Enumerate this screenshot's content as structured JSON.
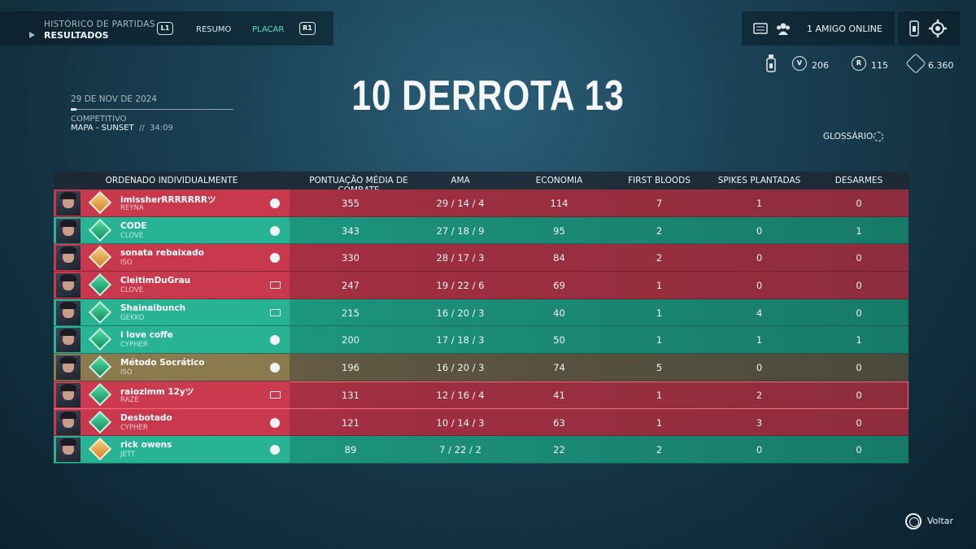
{
  "nav": {
    "history_title": "HISTÓRICO DE PARTIDAS",
    "history_sub": "RESULTADOS",
    "btn_left": "L1",
    "btn_right": "R1",
    "tabs": [
      {
        "label": "RESUMO",
        "active": false
      },
      {
        "label": "PLACAR",
        "active": true
      }
    ],
    "friends_online": "1 AMIGO ONLINE"
  },
  "currencies": [
    {
      "icon": "vp-icon",
      "value": "206"
    },
    {
      "icon": "radianite-icon",
      "value": "115"
    },
    {
      "icon": "kingdom-credits-icon",
      "value": "6.360"
    }
  ],
  "match": {
    "result": "10 DERROTA 13",
    "date": "29 DE NOV DE 2024",
    "mode": "COMPETITIVO",
    "map": "MAPA - SUNSET",
    "separator": "//",
    "duration": "34:09"
  },
  "glossary": "GLOSSÁRIO",
  "table": {
    "headers": {
      "sort": "ORDENADO INDIVIDUALMENTE",
      "acs": "PONTUAÇÃO MÉDIA DE COMBATE",
      "kda": "AMA",
      "econ": "ECONOMIA",
      "fb": "FIRST BLOODS",
      "plants": "SPIKES PLANTADAS",
      "defuses": "DESARMES"
    },
    "rows": [
      {
        "name": "imissherRRRRRRRツ",
        "agent": "REYNA",
        "team": "red",
        "rank": "gold",
        "platform": "ps",
        "acs": "355",
        "kda": "29 / 14 / 4",
        "econ": "114",
        "fb": "7",
        "plants": "1",
        "defuses": "0"
      },
      {
        "name": "CODE",
        "agent": "CLOVE",
        "team": "green",
        "rank": "emerald",
        "platform": "ps",
        "acs": "343",
        "kda": "27 / 18 / 9",
        "econ": "95",
        "fb": "2",
        "plants": "0",
        "defuses": "1"
      },
      {
        "name": "sonata rebaixado",
        "agent": "ISO",
        "team": "red",
        "rank": "gold",
        "platform": "ps",
        "acs": "330",
        "kda": "28 / 17 / 3",
        "econ": "84",
        "fb": "2",
        "plants": "0",
        "defuses": "0"
      },
      {
        "name": "CleitimDuGrau",
        "agent": "CLOVE",
        "team": "red",
        "rank": "emerald",
        "platform": "pc",
        "acs": "247",
        "kda": "19 / 22 / 6",
        "econ": "69",
        "fb": "1",
        "plants": "0",
        "defuses": "0"
      },
      {
        "name": "Shainaibunch",
        "agent": "GEKKO",
        "team": "green",
        "rank": "emerald",
        "platform": "pc",
        "acs": "215",
        "kda": "16 / 20 / 3",
        "econ": "40",
        "fb": "1",
        "plants": "4",
        "defuses": "0"
      },
      {
        "name": "i love coffe",
        "agent": "CYPHER",
        "team": "green",
        "rank": "emerald",
        "platform": "ps",
        "acs": "200",
        "kda": "17 / 18 / 3",
        "econ": "50",
        "fb": "1",
        "plants": "1",
        "defuses": "1"
      },
      {
        "name": "Método Socrático",
        "agent": "ISO",
        "team": "olive",
        "rank": "emerald",
        "platform": "ps",
        "acs": "196",
        "kda": "16 / 20 / 3",
        "econ": "74",
        "fb": "5",
        "plants": "0",
        "defuses": "0"
      },
      {
        "name": "raiozimm 12yツ",
        "agent": "RAZE",
        "team": "red self",
        "rank": "emerald",
        "platform": "pc",
        "acs": "131",
        "kda": "12 / 16 / 4",
        "econ": "41",
        "fb": "1",
        "plants": "2",
        "defuses": "0"
      },
      {
        "name": "Desbotado",
        "agent": "CYPHER",
        "team": "red",
        "rank": "emerald",
        "platform": "ps",
        "acs": "121",
        "kda": "10 / 14 / 3",
        "econ": "63",
        "fb": "1",
        "plants": "3",
        "defuses": "0"
      },
      {
        "name": "rick owens",
        "agent": "JETT",
        "team": "green",
        "rank": "gold",
        "platform": "ps",
        "acs": "89",
        "kda": "7 / 22 / 2",
        "econ": "22",
        "fb": "2",
        "plants": "0",
        "defuses": "0"
      }
    ]
  },
  "footer": {
    "back_label": "Voltar",
    "back_icon": "circle-button-icon"
  }
}
